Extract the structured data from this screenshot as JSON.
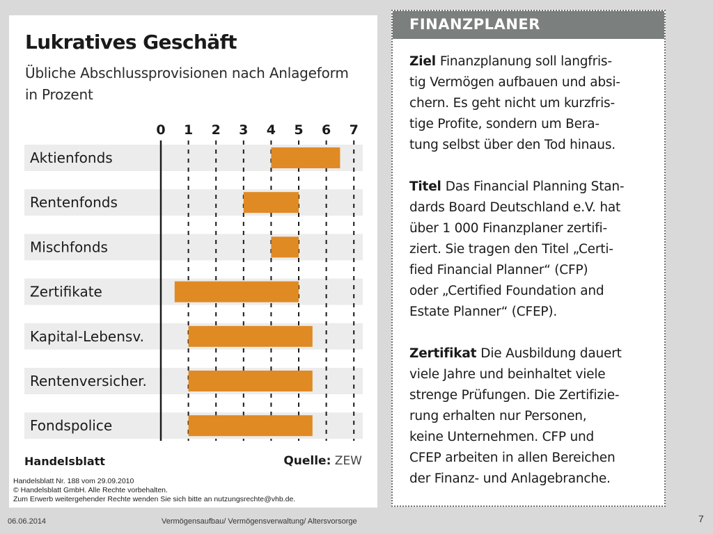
{
  "chart_data": {
    "type": "bar",
    "orientation": "horizontal-range",
    "title": "Lukratives Geschäft",
    "subtitle": "Übliche Abschlussprovisionen nach Anlageform in Prozent",
    "xlim": [
      0,
      7
    ],
    "x_ticks": [
      "0",
      "1",
      "2",
      "3",
      "4",
      "5",
      "6",
      "7"
    ],
    "grid": "dashed-vertical",
    "bar_color": "#e08a23",
    "categories": [
      "Aktienfonds",
      "Rentenfonds",
      "Mischfonds",
      "Zertifikate",
      "Kapital-Lebensv.",
      "Rentenversicher.",
      "Fondspolice"
    ],
    "ranges": [
      [
        4,
        6.5
      ],
      [
        3,
        5
      ],
      [
        4,
        5
      ],
      [
        0.5,
        5
      ],
      [
        1,
        5.5
      ],
      [
        1,
        5.5
      ],
      [
        1,
        5.5
      ]
    ],
    "source_brand": "Handelsblatt",
    "source_label": "Quelle:",
    "source_value": "ZEW"
  },
  "copyright": [
    "Handelsblatt Nr. 188 vom 29.09.2010",
    "© Handelsblatt GmbH. Alle Rechte vorbehalten.",
    "Zum Erwerb weitergehender Rechte wenden Sie sich bitte an nutzungsrechte@vhb.de."
  ],
  "info_box": {
    "title": "FINANZPLANER",
    "sections": [
      {
        "keyword": "Ziel",
        "lines": [
          "Finanzplanung soll langfris-",
          "tig Vermögen aufbauen und absi-",
          "chern. Es geht nicht um kurzfris-",
          "tige Profite, sondern um Bera-",
          "tung selbst über den Tod hinaus."
        ]
      },
      {
        "keyword": "Titel",
        "lines": [
          "Das Financial Planning Stan-",
          "dards Board Deutschland e.V. hat",
          "über 1 000 Finanzplaner zertifi-",
          "ziert. Sie tragen den Titel „Certi-",
          "fied Financial Planner“ (CFP)",
          "oder „Certified Foundation and",
          "Estate Planner“ (CFEP)."
        ]
      },
      {
        "keyword": "Zertifikat",
        "lines": [
          "Die Ausbildung dauert",
          "viele Jahre und beinhaltet viele",
          "strenge Prüfungen. Die Zertifizie-",
          "rung erhalten nur Personen,",
          "keine Unternehmen. CFP und",
          "CFEP arbeiten in allen Bereichen",
          "der Finanz- und Anlagebranche."
        ]
      }
    ]
  },
  "footer": {
    "date": "06.06.2014",
    "text": "Vermögensaufbau/ Vermögensverwaltung/ Altersvorsorge",
    "page": "7"
  }
}
